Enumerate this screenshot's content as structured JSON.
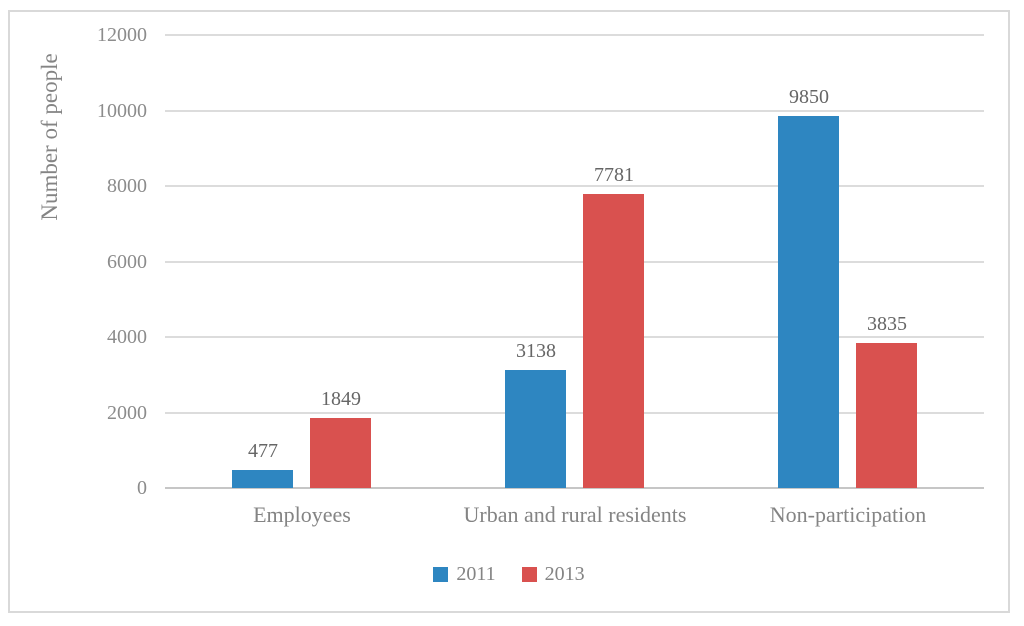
{
  "figure": {
    "background": "#ffffff",
    "border_color": "#d9d9d9"
  },
  "chart_data": {
    "type": "bar",
    "title": "",
    "xlabel": "",
    "ylabel": "Number of people",
    "categories": [
      "Employees",
      "Urban and rural residents",
      "Non-participation"
    ],
    "series": [
      {
        "name": "2011",
        "color": "#2e86c1",
        "values": [
          477,
          3138,
          9850
        ]
      },
      {
        "name": "2013",
        "color": "#d9514f",
        "values": [
          1849,
          7781,
          3835
        ]
      }
    ],
    "ylim": [
      0,
      12000
    ],
    "yticks": [
      0,
      2000,
      4000,
      6000,
      8000,
      10000,
      12000
    ],
    "grid": true,
    "data_labels": true,
    "legend_position": "bottom"
  },
  "colors": {
    "gridline": "#dcdcdc",
    "axis_line": "#c6c6c6",
    "tick_label": "#8c8c8c",
    "category_label": "#848484",
    "data_label": "#666666",
    "legend_label": "#848484",
    "axis_title": "#848484"
  }
}
